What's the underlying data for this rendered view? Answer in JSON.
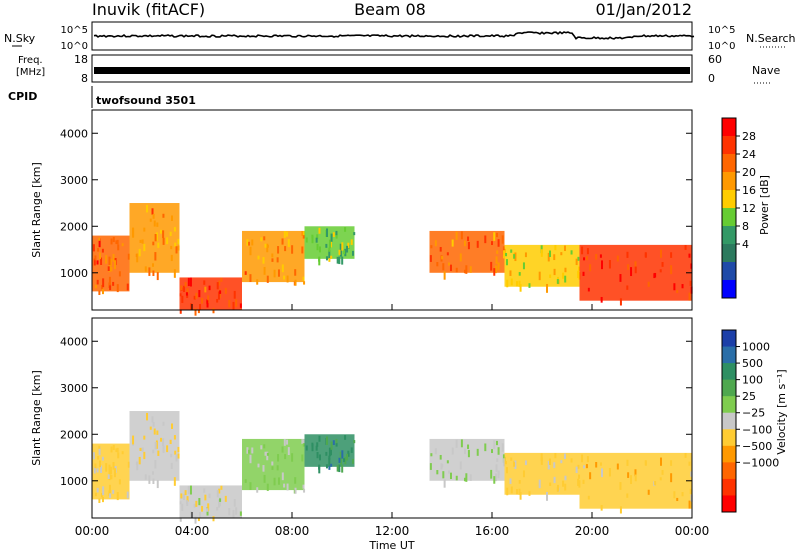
{
  "header": {
    "station": "Inuvik (fitACF)",
    "beam": "Beam 08",
    "date": "01/Jan/2012"
  },
  "nsky_panel": {
    "left_label": "N.Sky",
    "ticks_left": [
      "10^5",
      "10^0"
    ],
    "right_label": "N.Search",
    "ticks_right": [
      "10^5",
      "10^0"
    ]
  },
  "freq_panel": {
    "left_label_1": "Freq.",
    "left_label_2": "[MHz]",
    "ticks_left": [
      "18",
      "8"
    ],
    "right_label": "Nave",
    "ticks_right": [
      "60",
      "0"
    ]
  },
  "cpid_panel": {
    "left_label": "CPID",
    "program": "twofsound 3501"
  },
  "power_panel": {
    "ylabel": "Slant Range [km]",
    "yticks": [
      "4000",
      "3000",
      "2000",
      "1000"
    ],
    "colorbar_label": "Power [dB]",
    "colorbar_ticks": [
      "28",
      "24",
      "20",
      "16",
      "12",
      "8",
      "4"
    ],
    "colorbar_colors": [
      "#ff0000",
      "#ff3300",
      "#ff6600",
      "#ff9900",
      "#ffcc00",
      "#66cc33",
      "#339966",
      "#2c7a5e",
      "#1f4aa8",
      "#0000ff"
    ]
  },
  "velocity_panel": {
    "ylabel": "Slant Range [km]",
    "yticks": [
      "4000",
      "3000",
      "2000",
      "1000"
    ],
    "colorbar_label": "Velocity [m s⁻¹]",
    "colorbar_ticks": [
      "1000",
      "500",
      "100",
      "25",
      "−25",
      "−100",
      "−500",
      "−1000"
    ],
    "colorbar_colors": [
      "#1c3fa8",
      "#2a6ea8",
      "#2e8f63",
      "#4fa84f",
      "#7fcc4f",
      "#c8c8c8",
      "#ffcc33",
      "#ff9900",
      "#ff6600",
      "#ff3300",
      "#ff0000"
    ]
  },
  "xaxis": {
    "label": "Time UT",
    "ticks": [
      "00:00",
      "04:00",
      "08:00",
      "12:00",
      "16:00",
      "20:00",
      "00:00"
    ]
  },
  "chart_data": [
    {
      "type": "heatmap",
      "title": "Power",
      "xlabel": "Time UT",
      "ylabel": "Slant Range [km]",
      "xlim": [
        0,
        24
      ],
      "ylim": [
        200,
        4500
      ],
      "zlabel": "Power [dB]",
      "zlim": [
        0,
        32
      ],
      "echo_regions": [
        {
          "t_start": 0.0,
          "t_end": 1.5,
          "r_min": 600,
          "r_max": 1800,
          "power": 26
        },
        {
          "t_start": 1.5,
          "t_end": 3.5,
          "r_min": 1000,
          "r_max": 2500,
          "power": 22
        },
        {
          "t_start": 3.5,
          "t_end": 6.0,
          "r_min": 200,
          "r_max": 900,
          "power": 28
        },
        {
          "t_start": 6.0,
          "t_end": 8.5,
          "r_min": 800,
          "r_max": 1900,
          "power": 22
        },
        {
          "t_start": 8.5,
          "t_end": 10.5,
          "r_min": 1300,
          "r_max": 2000,
          "power": 14
        },
        {
          "t_start": 13.5,
          "t_end": 16.5,
          "r_min": 1000,
          "r_max": 1900,
          "power": 24
        },
        {
          "t_start": 16.5,
          "t_end": 19.5,
          "r_min": 700,
          "r_max": 1600,
          "power": 18
        },
        {
          "t_start": 19.5,
          "t_end": 24.0,
          "r_min": 400,
          "r_max": 1600,
          "power": 30
        }
      ]
    },
    {
      "type": "heatmap",
      "title": "Velocity",
      "xlabel": "Time UT",
      "ylabel": "Slant Range [km]",
      "xlim": [
        0,
        24
      ],
      "ylim": [
        200,
        4500
      ],
      "zlabel": "Velocity [m s⁻¹]",
      "zlim": [
        -1000,
        1000
      ],
      "echo_regions": [
        {
          "t_start": 0.0,
          "t_end": 1.5,
          "r_min": 600,
          "r_max": 1800,
          "velocity": -120
        },
        {
          "t_start": 1.5,
          "t_end": 3.5,
          "r_min": 1000,
          "r_max": 2500,
          "velocity": -80
        },
        {
          "t_start": 3.5,
          "t_end": 6.0,
          "r_min": 200,
          "r_max": 900,
          "velocity": 0
        },
        {
          "t_start": 6.0,
          "t_end": 8.5,
          "r_min": 800,
          "r_max": 1900,
          "velocity": 120
        },
        {
          "t_start": 8.5,
          "t_end": 10.5,
          "r_min": 1300,
          "r_max": 2000,
          "velocity": 600
        },
        {
          "t_start": 13.5,
          "t_end": 16.5,
          "r_min": 1000,
          "r_max": 1900,
          "velocity": 80
        },
        {
          "t_start": 16.5,
          "t_end": 19.5,
          "r_min": 700,
          "r_max": 1600,
          "velocity": -150
        },
        {
          "t_start": 19.5,
          "t_end": 24.0,
          "r_min": 400,
          "r_max": 1600,
          "velocity": -200
        }
      ]
    }
  ]
}
